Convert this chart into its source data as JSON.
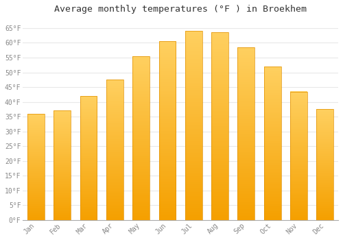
{
  "title": "Average monthly temperatures (°F ) in Broekhem",
  "months": [
    "Jan",
    "Feb",
    "Mar",
    "Apr",
    "May",
    "Jun",
    "Jul",
    "Aug",
    "Sep",
    "Oct",
    "Nov",
    "Dec"
  ],
  "values": [
    36,
    37,
    42,
    47.5,
    55.5,
    60.5,
    64,
    63.5,
    58.5,
    52,
    43.5,
    37.5
  ],
  "bar_color_top": "#FFC733",
  "bar_color_bottom": "#F5A623",
  "bar_edge_color": "#E8950A",
  "background_color": "#FFFFFF",
  "grid_color": "#E8E8E8",
  "yticks": [
    0,
    5,
    10,
    15,
    20,
    25,
    30,
    35,
    40,
    45,
    50,
    55,
    60,
    65
  ],
  "ylim": [
    0,
    68
  ],
  "title_fontsize": 9.5,
  "tick_fontsize": 7,
  "font_family": "monospace"
}
